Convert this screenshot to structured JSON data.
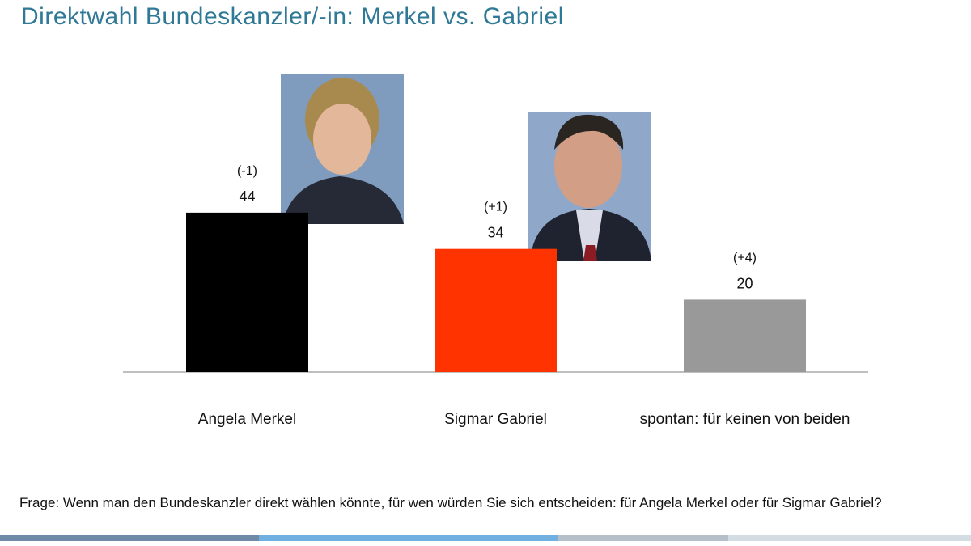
{
  "chart_data": {
    "type": "bar",
    "title": "Direktwahl Bundeskanzler/-in: Merkel vs. Gabriel",
    "categories": [
      "Angela Merkel",
      "Sigmar Gabriel",
      "spontan: für keinen von beiden"
    ],
    "values": [
      44,
      34,
      20
    ],
    "annotations": [
      "(-1)",
      "(+1)",
      "(+4)"
    ],
    "colors": [
      "#000000",
      "#ff3300",
      "#999999"
    ],
    "footnote": "Frage: Wenn man den Bundeskanzler direkt wählen könnte, für wen würden Sie sich entscheiden: für Angela Merkel oder für Sigmar Gabriel?"
  }
}
